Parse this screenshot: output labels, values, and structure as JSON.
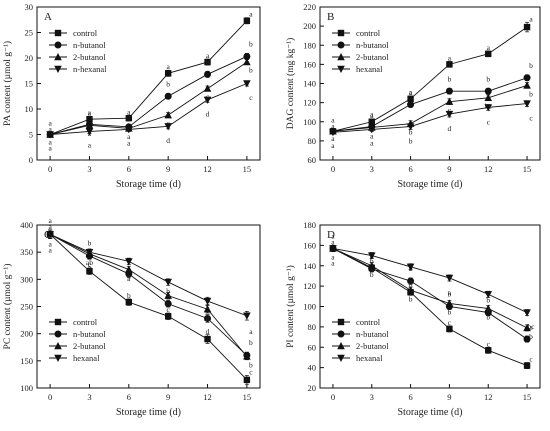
{
  "chart_data": [
    {
      "panel": "A",
      "type": "line",
      "ylabel": "PA content (µmol g⁻¹)",
      "xlabel": "Storage time (d)",
      "x": [
        0,
        3,
        6,
        9,
        12,
        15
      ],
      "xlim": [
        -1,
        16
      ],
      "ylim": [
        0,
        30
      ],
      "yticks": [
        0,
        5,
        10,
        15,
        20,
        25,
        30
      ],
      "legend_position": "top-left",
      "series": [
        {
          "name": "control",
          "marker": "square",
          "values": [
            5.0,
            8.0,
            8.2,
            17.0,
            19.2,
            27.3
          ],
          "errors": [
            0.4,
            0.5,
            0.5,
            0.6,
            0.6,
            0.6
          ],
          "letters": [
            "a",
            "a",
            "a",
            "a",
            "a",
            "a"
          ]
        },
        {
          "name": "n-butanol",
          "marker": "circle",
          "values": [
            5.0,
            7.0,
            6.5,
            12.5,
            16.8,
            20.3
          ],
          "errors": [
            0.4,
            0.5,
            0.5,
            0.5,
            0.6,
            0.6
          ],
          "letters": [
            "a",
            "a",
            "a",
            "b",
            "b",
            "b"
          ]
        },
        {
          "name": "2-butanol",
          "marker": "triangle-up",
          "values": [
            5.0,
            6.8,
            6.2,
            8.8,
            14.0,
            19.2
          ],
          "errors": [
            0.4,
            0.5,
            0.5,
            0.5,
            0.5,
            0.5
          ],
          "letters": [
            "a",
            "a",
            "a",
            "c",
            "c",
            "b"
          ]
        },
        {
          "name": "n-hexanal",
          "marker": "triangle-down",
          "values": [
            5.0,
            5.6,
            6.0,
            6.6,
            11.8,
            15.0
          ],
          "errors": [
            0.4,
            0.4,
            0.4,
            0.5,
            0.5,
            0.5
          ],
          "letters": [
            "a",
            "a",
            "a",
            "d",
            "d",
            "c"
          ]
        }
      ]
    },
    {
      "panel": "B",
      "type": "line",
      "ylabel": "DAG content (mg kg⁻¹)",
      "xlabel": "Storage time (d)",
      "x": [
        0,
        3,
        6,
        9,
        12,
        15
      ],
      "xlim": [
        -1,
        16
      ],
      "ylim": [
        60,
        220
      ],
      "yticks": [
        60,
        80,
        100,
        120,
        140,
        160,
        180,
        200,
        220
      ],
      "legend_position": "top-left",
      "series": [
        {
          "name": "control",
          "marker": "square",
          "values": [
            90,
            100,
            124,
            160,
            171,
            199
          ],
          "errors": [
            2,
            3,
            3,
            3,
            3,
            5
          ],
          "letters": [
            "a",
            "a",
            "a",
            "a",
            "a",
            "a"
          ]
        },
        {
          "name": "n-butanol",
          "marker": "circle",
          "values": [
            90,
            95,
            118,
            132,
            132,
            146
          ],
          "errors": [
            2,
            3,
            3,
            3,
            3,
            3
          ],
          "letters": [
            "a",
            "a",
            "a",
            "b",
            "b",
            "b"
          ]
        },
        {
          "name": "2-butanol",
          "marker": "triangle-up",
          "values": [
            90,
            94,
            98,
            121,
            125,
            138
          ],
          "errors": [
            2,
            3,
            3,
            3,
            3,
            3
          ],
          "letters": [
            "a",
            "a",
            "b",
            "c",
            "bc",
            "b"
          ]
        },
        {
          "name": "hexanal",
          "marker": "triangle-down",
          "values": [
            89,
            92,
            95,
            108,
            115,
            119
          ],
          "errors": [
            2,
            2,
            3,
            3,
            3,
            3
          ],
          "letters": [
            "a",
            "a",
            "b",
            "d",
            "c",
            "c"
          ]
        }
      ]
    },
    {
      "panel": "C",
      "type": "line",
      "ylabel": "PC content (µmol g⁻¹)",
      "xlabel": "Storage time (d)",
      "x": [
        0,
        3,
        6,
        9,
        12,
        15
      ],
      "xlim": [
        -1,
        16
      ],
      "ylim": [
        100,
        400
      ],
      "yticks": [
        100,
        150,
        200,
        250,
        300,
        350,
        400
      ],
      "legend_position": "bottom-left",
      "series": [
        {
          "name": "control",
          "marker": "square",
          "values": [
            383,
            315,
            258,
            232,
            190,
            115
          ],
          "errors": [
            8,
            6,
            6,
            6,
            8,
            8
          ],
          "letters": [
            "a",
            "c",
            "b",
            "c",
            "d",
            "c"
          ]
        },
        {
          "name": "n-butanol",
          "marker": "circle",
          "values": [
            383,
            343,
            310,
            255,
            228,
            160
          ],
          "errors": [
            8,
            6,
            6,
            6,
            7,
            6
          ],
          "letters": [
            "a",
            "b",
            "a",
            "b",
            "c",
            "b"
          ]
        },
        {
          "name": "2-butanol",
          "marker": "triangle-up",
          "values": [
            383,
            347,
            318,
            270,
            245,
            158
          ],
          "errors": [
            8,
            6,
            6,
            6,
            7,
            6
          ],
          "letters": [
            "a",
            "ab",
            "a",
            "b",
            "ab",
            "b"
          ]
        },
        {
          "name": "hexanal",
          "marker": "triangle-down",
          "values": [
            383,
            350,
            333,
            295,
            260,
            233
          ],
          "errors": [
            8,
            6,
            6,
            6,
            7,
            8
          ],
          "letters": [
            "a",
            "a",
            "a",
            "a",
            "a",
            "a"
          ]
        }
      ]
    },
    {
      "panel": "D",
      "type": "line",
      "ylabel": "PI content (µmol g⁻¹)",
      "xlabel": "Storage time (d)",
      "x": [
        0,
        3,
        6,
        9,
        12,
        15
      ],
      "xlim": [
        -1,
        16
      ],
      "ylim": [
        20,
        180
      ],
      "yticks": [
        20,
        40,
        60,
        80,
        100,
        120,
        140,
        160,
        180
      ],
      "legend_position": "bottom-left",
      "series": [
        {
          "name": "control",
          "marker": "square",
          "values": [
            157,
            138,
            114,
            78,
            57,
            42
          ],
          "errors": [
            3,
            3,
            3,
            3,
            3,
            3
          ],
          "letters": [
            "a",
            "b",
            "b",
            "c",
            "c",
            "c"
          ]
        },
        {
          "name": "n-butanol",
          "marker": "circle",
          "values": [
            157,
            137,
            125,
            100,
            94,
            68
          ],
          "errors": [
            3,
            3,
            3,
            3,
            3,
            3
          ],
          "letters": [
            "a",
            "b",
            "b",
            "b",
            "b",
            "bc"
          ]
        },
        {
          "name": "2-butanol",
          "marker": "triangle-up",
          "values": [
            157,
            140,
            116,
            103,
            98,
            79
          ],
          "errors": [
            3,
            3,
            3,
            3,
            3,
            3
          ],
          "letters": [
            "a",
            "b",
            "b",
            "b",
            "b",
            "b"
          ]
        },
        {
          "name": "hexanal",
          "marker": "triangle-down",
          "values": [
            157,
            150,
            139,
            128,
            112,
            94
          ],
          "errors": [
            3,
            3,
            3,
            3,
            3,
            3
          ],
          "letters": [
            "a",
            "a",
            "a",
            "a",
            "a",
            "a"
          ]
        }
      ]
    }
  ]
}
